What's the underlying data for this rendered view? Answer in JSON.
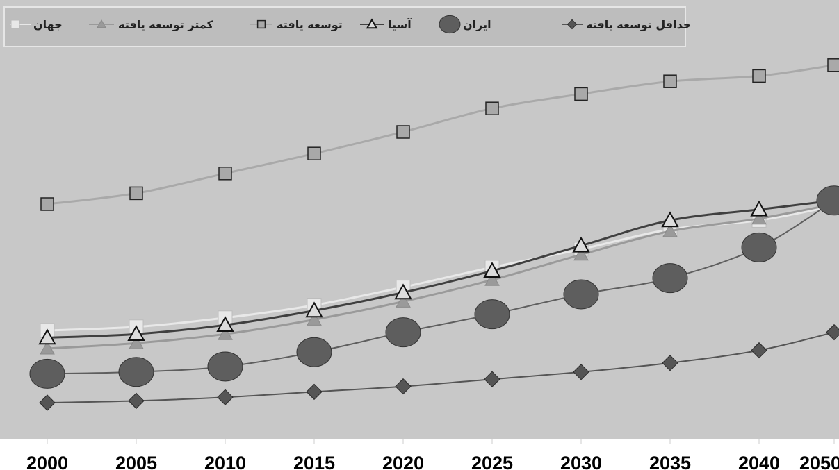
{
  "chart_data": {
    "type": "line",
    "title": "",
    "xlabel": "",
    "ylabel": "",
    "x": [
      2000,
      2005,
      2010,
      2015,
      2020,
      2025,
      2030,
      2035,
      2040,
      2050
    ],
    "ylim": [
      0,
      100
    ],
    "grid": false,
    "legend_position": "top",
    "series": [
      {
        "name": "حداقل توسعه یافته",
        "marker": "diamond",
        "color": "#555555",
        "values": [
          10,
          10.5,
          11.5,
          13,
          14.5,
          16.5,
          18.5,
          21,
          24.5,
          29.5
        ]
      },
      {
        "name": "ایران",
        "marker": "circle",
        "color": "#5e5e5e",
        "values": [
          18,
          18.5,
          20,
          24,
          29.5,
          34.5,
          40,
          44.5,
          53,
          66
        ]
      },
      {
        "name": "آسیا",
        "marker": "triangle",
        "color": "#404040",
        "values": [
          28,
          29,
          31.5,
          35.5,
          40.5,
          46.5,
          53.5,
          60.5,
          63.5,
          66
        ]
      },
      {
        "name": "توسعه یافته",
        "marker": "square",
        "color": "#a9a9a9",
        "values": [
          65,
          68,
          73.5,
          79,
          85,
          91.5,
          95.5,
          99,
          100.5,
          103.5
        ]
      },
      {
        "name": "کمتر توسعه یافته",
        "marker": "triangle-filled",
        "color": "#9a9a9a",
        "values": [
          25,
          26.5,
          29,
          33,
          38,
          44,
          51,
          57.5,
          61,
          65
        ]
      },
      {
        "name": "جهان",
        "marker": "square-open",
        "color": "#e8e8e8",
        "values": [
          30,
          31,
          33.5,
          37,
          42,
          47.5,
          52.5,
          58,
          60.5,
          64.5
        ]
      }
    ]
  }
}
